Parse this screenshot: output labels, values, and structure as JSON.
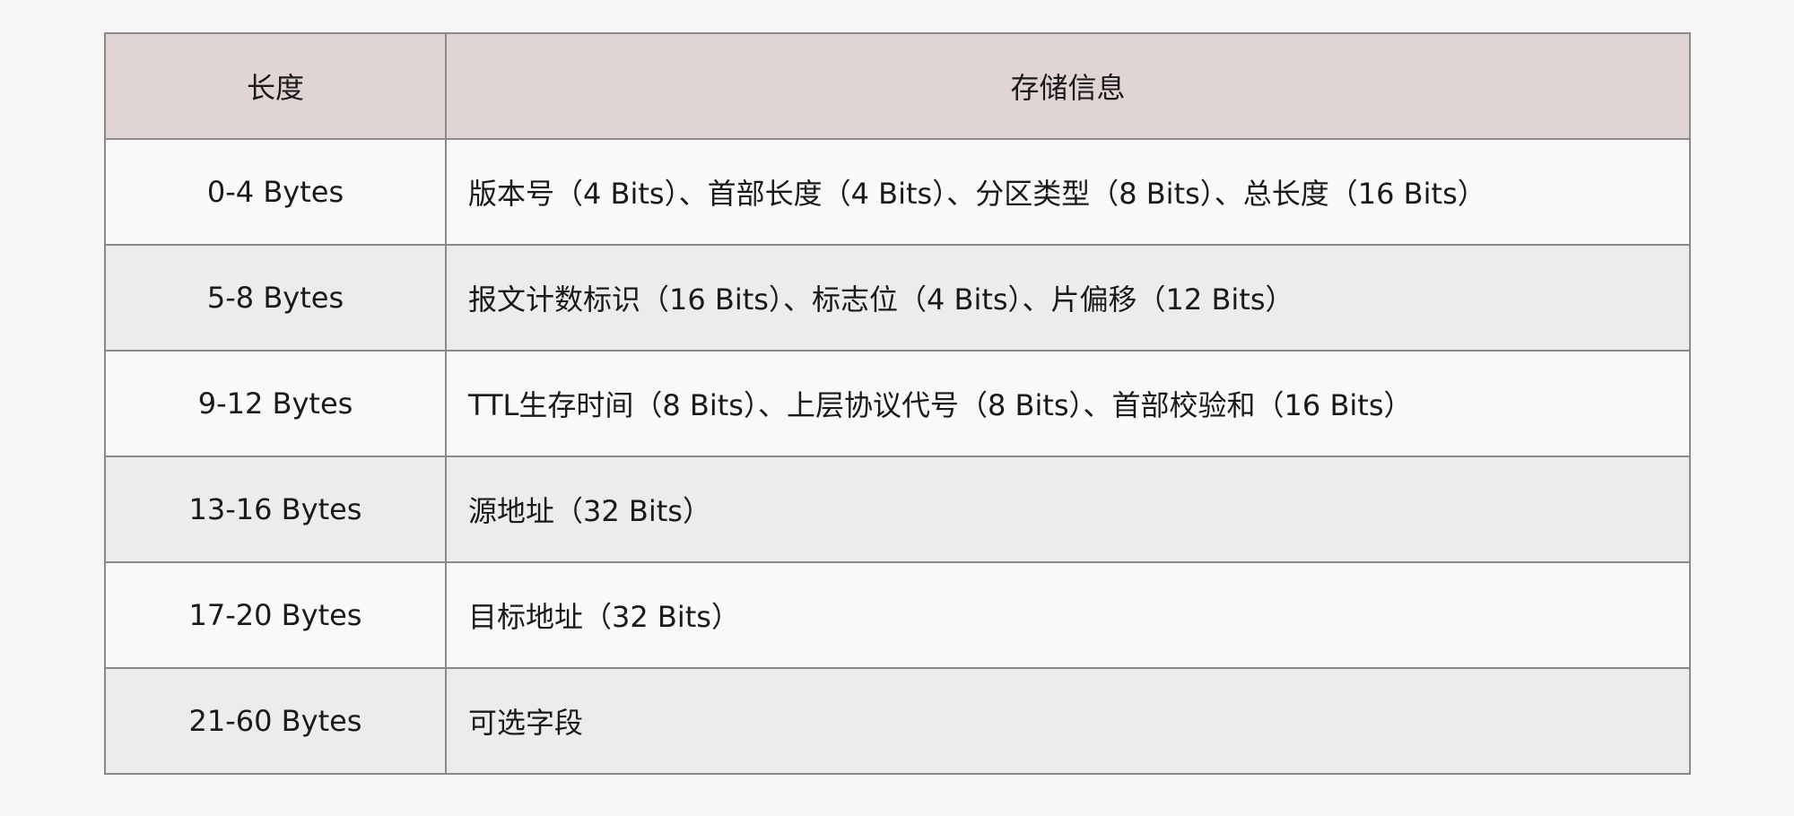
{
  "table": {
    "headers": [
      "长度",
      "存储信息"
    ],
    "rows": [
      {
        "length": "0-4 Bytes",
        "info": "版本号（4 Bits）、首部长度（4 Bits）、分区类型（8 Bits）、总长度（16 Bits）"
      },
      {
        "length": "5-8 Bytes",
        "info": "报文计数标识（16 Bits）、标志位（4 Bits）、片偏移（12 Bits）"
      },
      {
        "length": "9-12 Bytes",
        "info": "TTL生存时间（8 Bits）、上层协议代号（8 Bits）、首部校验和（16 Bits）"
      },
      {
        "length": "13-16 Bytes",
        "info": "源地址（32 Bits）"
      },
      {
        "length": "17-20 Bytes",
        "info": "目标地址（32 Bits）"
      },
      {
        "length": "21-60 Bytes",
        "info": "可选字段"
      }
    ]
  },
  "colors": {
    "header_bg": "#e0d4d4",
    "row_odd": "#faf8f9",
    "row_even": "#ececec",
    "border": "#8c8989"
  }
}
